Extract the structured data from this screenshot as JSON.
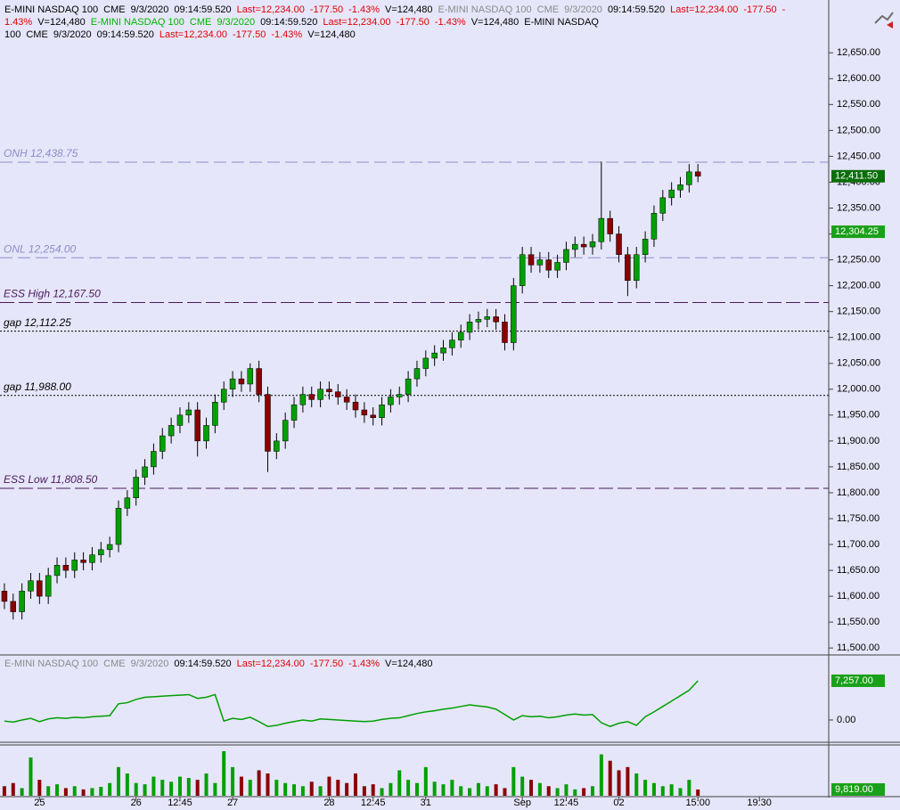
{
  "chart_data": {
    "type": "candlestick",
    "quote": {
      "symbol": "E-MINI NASDAQ 100",
      "exchange": "CME",
      "date": "9/3/2020",
      "time": "09:14:59.520",
      "last": "Last=12,234.00",
      "change": "-177.50",
      "change_pct": "-1.43%",
      "volume": "V=124,480"
    },
    "header_symbol_colors": [
      "#000000",
      "#8a8a8a",
      "#00b400",
      "#000000"
    ],
    "up_color": "#00a000",
    "down_color": "#8b0000",
    "xlim": [
      -0.5,
      93.9
    ],
    "xticks": [
      {
        "value": 4,
        "label": "25"
      },
      {
        "value": 15,
        "label": "26"
      },
      {
        "value": 20,
        "label": "12:45"
      },
      {
        "value": 26,
        "label": "27"
      },
      {
        "value": 37,
        "label": "28"
      },
      {
        "value": 42,
        "label": "12:45"
      },
      {
        "value": 48,
        "label": "31"
      },
      {
        "value": 59,
        "label": "Sep"
      },
      {
        "value": 64,
        "label": "12:45"
      },
      {
        "value": 70,
        "label": "02"
      },
      {
        "value": 79,
        "label": "15:00"
      },
      {
        "value": 86,
        "label": "19:30"
      }
    ],
    "ylim": [
      11490,
      12752
    ],
    "yticks": [
      {
        "value": 11500,
        "label": "11,500.00"
      },
      {
        "value": 11550,
        "label": "11,550.00"
      },
      {
        "value": 11600,
        "label": "11,600.00"
      },
      {
        "value": 11650,
        "label": "11,650.00"
      },
      {
        "value": 11700,
        "label": "11,700.00"
      },
      {
        "value": 11750,
        "label": "11,750.00"
      },
      {
        "value": 11800,
        "label": "11,800.00"
      },
      {
        "value": 11850,
        "label": "11,850.00"
      },
      {
        "value": 11900,
        "label": "11,900.00"
      },
      {
        "value": 11950,
        "label": "11,950.00"
      },
      {
        "value": 12000,
        "label": "12,000.00"
      },
      {
        "value": 12050,
        "label": "12,050.00"
      },
      {
        "value": 12100,
        "label": "12,100.00"
      },
      {
        "value": 12150,
        "label": "12,150.00"
      },
      {
        "value": 12200,
        "label": "12,200.00"
      },
      {
        "value": 12250,
        "label": "12,250.00"
      },
      {
        "value": 12300,
        "label": "12,300.00"
      },
      {
        "value": 12350,
        "label": "12,350.00"
      },
      {
        "value": 12400,
        "label": "12,400.00"
      },
      {
        "value": 12450,
        "label": "12,450.00"
      },
      {
        "value": 12500,
        "label": "12,500.00"
      },
      {
        "value": 12550,
        "label": "12,550.00"
      },
      {
        "value": 12600,
        "label": "12,600.00"
      },
      {
        "value": 12650,
        "label": "12,650.00"
      }
    ],
    "price_markers": [
      {
        "value": 12411.5,
        "label": "12,411.50",
        "color": "#0a6e0a"
      },
      {
        "value": 12304.25,
        "label": "12,304.25",
        "color": "#1aa01a"
      }
    ],
    "levels": [
      {
        "label": "ONH 12,438.75",
        "value": 12438.75,
        "color": "#8c8cd0",
        "style": "dashed"
      },
      {
        "label": "ONL 12,254.00",
        "value": 12254,
        "color": "#8c8cd0",
        "style": "dashed"
      },
      {
        "label": "ESS High 12,167.50",
        "value": 12167.5,
        "color": "#4a1a5a",
        "style": "long-dash"
      },
      {
        "label": "gap 12,112.25",
        "value": 12112.25,
        "color": "#000000",
        "style": "dotted"
      },
      {
        "label": "gap 11,988.00",
        "value": 11988,
        "color": "#000000",
        "style": "dotted"
      },
      {
        "label": "ESS Low 11,808.50",
        "value": 11808.5,
        "color": "#4a1a5a",
        "style": "long-dash"
      }
    ],
    "ohlc": [
      [
        11610,
        11625,
        11575,
        11590
      ],
      [
        11590,
        11605,
        11555,
        11570
      ],
      [
        11570,
        11625,
        11555,
        11610
      ],
      [
        11610,
        11645,
        11595,
        11630
      ],
      [
        11630,
        11645,
        11585,
        11600
      ],
      [
        11600,
        11655,
        11585,
        11640
      ],
      [
        11640,
        11675,
        11625,
        11660
      ],
      [
        11660,
        11675,
        11635,
        11650
      ],
      [
        11650,
        11685,
        11635,
        11670
      ],
      [
        11670,
        11685,
        11650,
        11665
      ],
      [
        11665,
        11695,
        11650,
        11680
      ],
      [
        11680,
        11705,
        11665,
        11690
      ],
      [
        11690,
        11715,
        11675,
        11700
      ],
      [
        11700,
        11785,
        11685,
        11770
      ],
      [
        11770,
        11805,
        11755,
        11790
      ],
      [
        11790,
        11845,
        11775,
        11830
      ],
      [
        11830,
        11865,
        11815,
        11850
      ],
      [
        11850,
        11895,
        11835,
        11880
      ],
      [
        11880,
        11925,
        11865,
        11910
      ],
      [
        11910,
        11945,
        11895,
        11930
      ],
      [
        11930,
        11965,
        11915,
        11950
      ],
      [
        11950,
        11975,
        11935,
        11960
      ],
      [
        11960,
        11975,
        11870,
        11900
      ],
      [
        11900,
        11945,
        11885,
        11930
      ],
      [
        11930,
        11990,
        11915,
        11975
      ],
      [
        11975,
        12015,
        11960,
        12000
      ],
      [
        12000,
        12035,
        11985,
        12020
      ],
      [
        12020,
        12035,
        11995,
        12010
      ],
      [
        12010,
        12050,
        11995,
        12040
      ],
      [
        12040,
        12055,
        11975,
        11990
      ],
      [
        11990,
        12005,
        11840,
        11880
      ],
      [
        11880,
        11915,
        11865,
        11900
      ],
      [
        11900,
        11955,
        11885,
        11940
      ],
      [
        11940,
        11985,
        11925,
        11970
      ],
      [
        11970,
        12005,
        11955,
        11990
      ],
      [
        11990,
        12005,
        11965,
        11980
      ],
      [
        11980,
        12015,
        11965,
        12000
      ],
      [
        12000,
        12015,
        11980,
        11995
      ],
      [
        11995,
        12010,
        11970,
        11985
      ],
      [
        11985,
        12000,
        11960,
        11975
      ],
      [
        11975,
        11990,
        11945,
        11960
      ],
      [
        11960,
        11975,
        11935,
        11950
      ],
      [
        11950,
        11965,
        11930,
        11945
      ],
      [
        11945,
        11985,
        11930,
        11970
      ],
      [
        11970,
        12000,
        11955,
        11985
      ],
      [
        11985,
        12005,
        11970,
        11990
      ],
      [
        11990,
        12035,
        11975,
        12020
      ],
      [
        12020,
        12055,
        12005,
        12040
      ],
      [
        12040,
        12075,
        12025,
        12060
      ],
      [
        12060,
        12085,
        12045,
        12070
      ],
      [
        12070,
        12095,
        12055,
        12080
      ],
      [
        12080,
        12110,
        12065,
        12095
      ],
      [
        12095,
        12125,
        12080,
        12110
      ],
      [
        12110,
        12145,
        12095,
        12130
      ],
      [
        12130,
        12150,
        12115,
        12135
      ],
      [
        12135,
        12155,
        12120,
        12140
      ],
      [
        12140,
        12155,
        12115,
        12130
      ],
      [
        12130,
        12145,
        12075,
        12090
      ],
      [
        12090,
        12215,
        12075,
        12200
      ],
      [
        12200,
        12275,
        12185,
        12260
      ],
      [
        12260,
        12275,
        12225,
        12240
      ],
      [
        12240,
        12265,
        12225,
        12250
      ],
      [
        12250,
        12265,
        12215,
        12230
      ],
      [
        12230,
        12260,
        12215,
        12245
      ],
      [
        12245,
        12285,
        12230,
        12270
      ],
      [
        12270,
        12295,
        12255,
        12280
      ],
      [
        12280,
        12295,
        12260,
        12275
      ],
      [
        12275,
        12300,
        12260,
        12285
      ],
      [
        12285,
        12440,
        12270,
        12330
      ],
      [
        12330,
        12345,
        12285,
        12300
      ],
      [
        12300,
        12315,
        12245,
        12260
      ],
      [
        12260,
        12275,
        12180,
        12210
      ],
      [
        12210,
        12275,
        12195,
        12260
      ],
      [
        12260,
        12305,
        12245,
        12290
      ],
      [
        12290,
        12355,
        12275,
        12340
      ],
      [
        12340,
        12385,
        12325,
        12370
      ],
      [
        12370,
        12400,
        12355,
        12385
      ],
      [
        12385,
        12410,
        12370,
        12395
      ],
      [
        12395,
        12435,
        12380,
        12420
      ],
      [
        12420,
        12435,
        12400,
        12411.5
      ]
    ],
    "indicator": {
      "color": "#00a000",
      "ylim": [
        -3630,
        11700
      ],
      "yticks": [
        {
          "value": 0,
          "label": "0.00"
        }
      ],
      "marker": {
        "value": 7257,
        "label": "7,257.00",
        "color": "#1aa01a"
      },
      "values": [
        -200,
        -400,
        0,
        300,
        -300,
        200,
        400,
        300,
        500,
        400,
        600,
        700,
        800,
        3000,
        3200,
        3800,
        4200,
        4300,
        4400,
        4500,
        4600,
        4700,
        4000,
        4200,
        4700,
        -200,
        300,
        100,
        500,
        -300,
        -1200,
        -1000,
        -600,
        -300,
        0,
        -200,
        200,
        100,
        0,
        -100,
        -200,
        -300,
        -200,
        100,
        300,
        400,
        800,
        1200,
        1500,
        1700,
        2000,
        2200,
        2500,
        2800,
        2600,
        2400,
        2000,
        1000,
        0,
        800,
        600,
        700,
        400,
        600,
        900,
        1100,
        900,
        1000,
        -500,
        -1200,
        -600,
        -300,
        -1000,
        600,
        1500,
        2500,
        3500,
        4500,
        5500,
        7257
      ]
    },
    "volume": {
      "ylim": [
        0,
        77000
      ],
      "marker": {
        "value": 9819,
        "label": "9,819.00",
        "color": "#1aa01a"
      },
      "values": [
        15000,
        20000,
        12000,
        60000,
        25000,
        15000,
        18000,
        12000,
        15000,
        10000,
        12000,
        14000,
        20000,
        45000,
        35000,
        20000,
        18000,
        30000,
        25000,
        22000,
        30000,
        28000,
        25000,
        35000,
        20000,
        70000,
        45000,
        30000,
        25000,
        40000,
        35000,
        25000,
        20000,
        18000,
        15000,
        22000,
        15000,
        30000,
        25000,
        20000,
        35000,
        15000,
        18000,
        12000,
        20000,
        40000,
        25000,
        20000,
        45000,
        22000,
        18000,
        25000,
        15000,
        12000,
        20000,
        15000,
        18000,
        12000,
        45000,
        30000,
        25000,
        20000,
        15000,
        12000,
        18000,
        10000,
        12000,
        15000,
        65000,
        55000,
        40000,
        45000,
        35000,
        25000,
        20000,
        15000,
        18000,
        12000,
        25000,
        9819
      ]
    }
  }
}
